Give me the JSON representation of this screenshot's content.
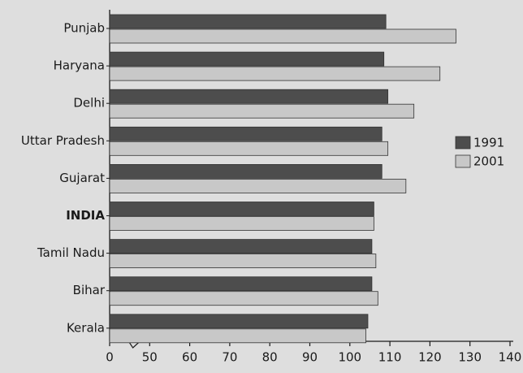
{
  "chart_data": {
    "type": "hbar",
    "categories": [
      "Punjab",
      "Haryana",
      "Delhi",
      "Uttar Pradesh",
      "Gujarat",
      "INDIA",
      "Tamil Nadu",
      "Bihar",
      "Kerala"
    ],
    "bold_category": 5,
    "series": [
      {
        "name": "1991",
        "color": "#4d4d4d",
        "values": [
          109,
          108.5,
          109.5,
          108,
          108,
          106,
          105.5,
          105.5,
          104.5
        ]
      },
      {
        "name": "2001",
        "color": "#c8c8c8",
        "values": [
          126.5,
          122.5,
          116,
          109.5,
          114,
          106,
          106.5,
          107,
          104
        ]
      }
    ],
    "xlim": [
      0,
      140
    ],
    "xticks": [
      0,
      50,
      60,
      70,
      80,
      90,
      100,
      110,
      120,
      130,
      140
    ],
    "axis_break": true,
    "legend": "right"
  }
}
